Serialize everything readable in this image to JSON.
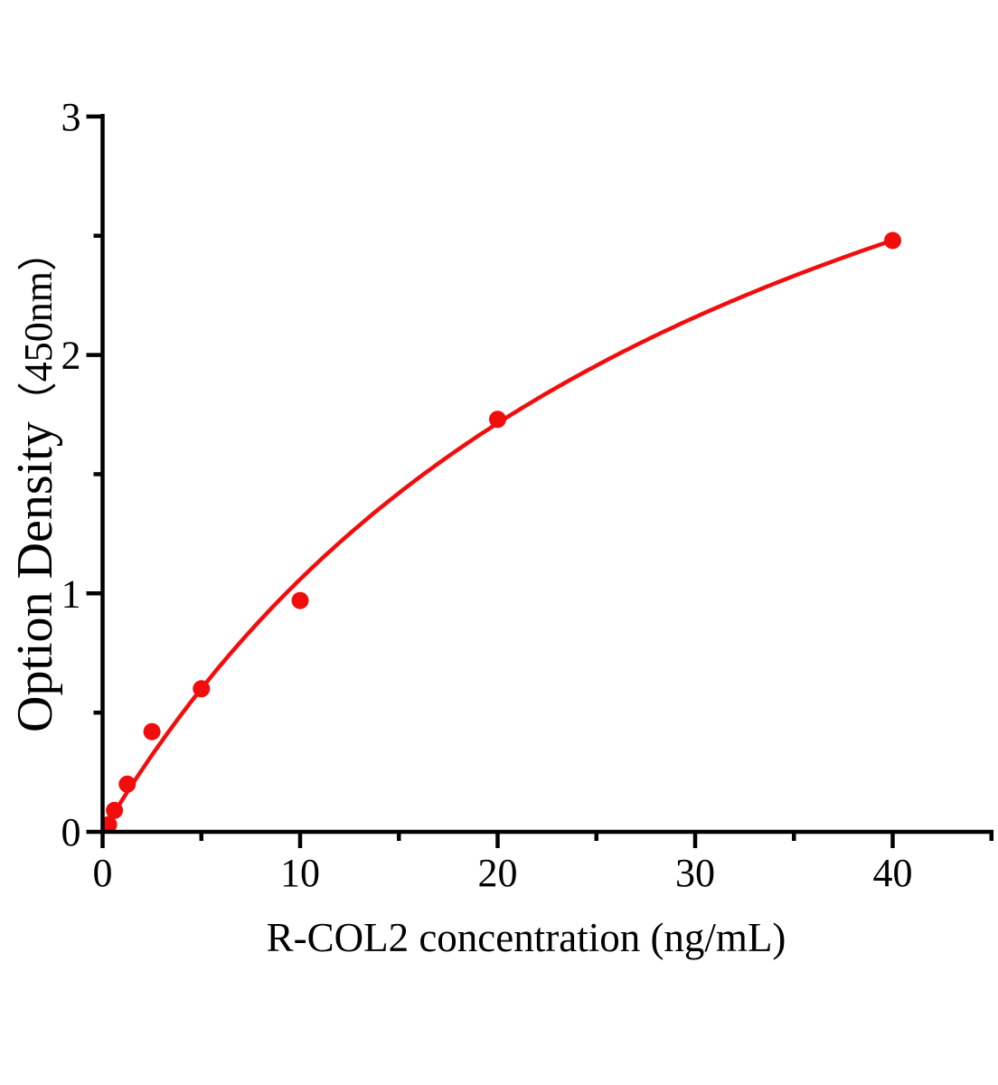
{
  "page": {
    "background": "#ffffff"
  },
  "chart_data": {
    "type": "scatter",
    "title": "",
    "xlabel": "R-COL2 concentration (ng/mL)",
    "ylabel": "Option Density（450nm）",
    "ylabel_parts": [
      "Option Density",
      "（450nm）"
    ],
    "x": [
      0.3,
      0.6,
      1.25,
      2.5,
      5,
      10,
      20,
      40
    ],
    "y": [
      0.03,
      0.09,
      0.2,
      0.42,
      0.6,
      0.97,
      1.73,
      2.48
    ],
    "xlim": [
      0,
      45
    ],
    "ylim": [
      0,
      3
    ],
    "x_major_ticks": [
      0,
      10,
      20,
      30,
      40
    ],
    "x_minor_ticks": [
      5,
      15,
      25,
      35,
      45
    ],
    "y_major_ticks": [
      0,
      1,
      2,
      3
    ],
    "y_minor_ticks": [
      0.5,
      1.5,
      2.5
    ],
    "grid": false,
    "legend": null,
    "curve_fit": {
      "model": "michaelis_menten",
      "vmax": 4.49,
      "km": 32.4,
      "x_range": [
        0,
        40
      ]
    },
    "colors": {
      "series": "#f20d0d",
      "axis": "#000000",
      "text": "#000000"
    }
  }
}
